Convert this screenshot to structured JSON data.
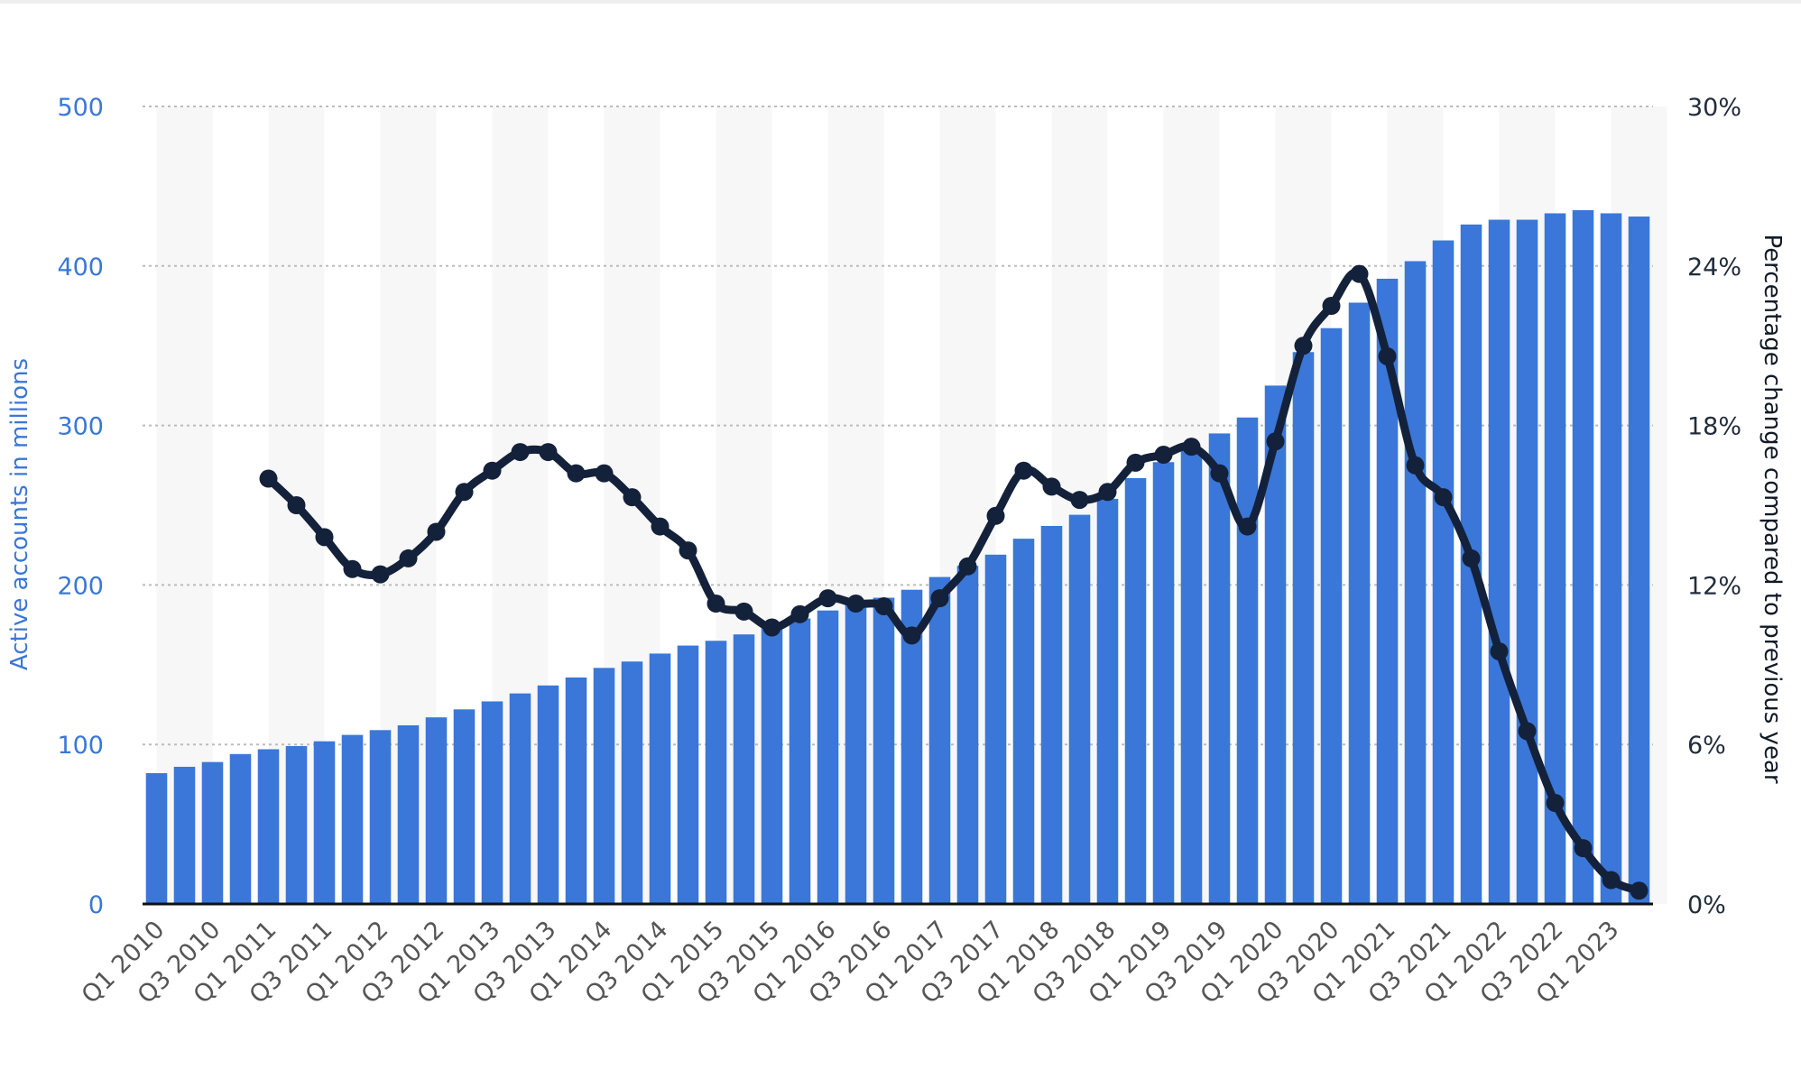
{
  "chart_data": {
    "type": "bar",
    "categories": [
      "Q1 2010",
      "Q2 2010",
      "Q3 2010",
      "Q4 2010",
      "Q1 2011",
      "Q2 2011",
      "Q3 2011",
      "Q4 2011",
      "Q1 2012",
      "Q2 2012",
      "Q3 2012",
      "Q4 2012",
      "Q1 2013",
      "Q2 2013",
      "Q3 2013",
      "Q4 2013",
      "Q1 2014",
      "Q2 2014",
      "Q3 2014",
      "Q4 2014",
      "Q1 2015",
      "Q2 2015",
      "Q3 2015",
      "Q4 2015",
      "Q1 2016",
      "Q2 2016",
      "Q3 2016",
      "Q4 2016",
      "Q1 2017",
      "Q2 2017",
      "Q3 2017",
      "Q4 2017",
      "Q1 2018",
      "Q2 2018",
      "Q3 2018",
      "Q4 2018",
      "Q1 2019",
      "Q2 2019",
      "Q3 2019",
      "Q4 2019",
      "Q1 2020",
      "Q2 2020",
      "Q3 2020",
      "Q4 2020",
      "Q1 2021",
      "Q2 2021",
      "Q3 2021",
      "Q4 2021",
      "Q1 2022",
      "Q2 2022",
      "Q3 2022",
      "Q4 2022",
      "Q1 2023",
      "Q2 2023"
    ],
    "x_tick_labels": [
      "Q1 2010",
      "Q3 2010",
      "Q1 2011",
      "Q3 2011",
      "Q1 2012",
      "Q3 2012",
      "Q1 2013",
      "Q3 2013",
      "Q1 2014",
      "Q3 2014",
      "Q1 2015",
      "Q3 2015",
      "Q1 2016",
      "Q3 2016",
      "Q1 2017",
      "Q3 2017",
      "Q1 2018",
      "Q3 2018",
      "Q1 2019",
      "Q3 2019",
      "Q1 2020",
      "Q3 2020",
      "Q1 2021",
      "Q3 2021",
      "Q1 2022",
      "Q3 2022",
      "Q1 2023"
    ],
    "series": [
      {
        "name": "Active accounts in millions",
        "type": "bar",
        "axis": "left",
        "color": "#3a77d8",
        "values": [
          82,
          86,
          89,
          94,
          97,
          99,
          102,
          106,
          109,
          112,
          117,
          122,
          127,
          132,
          137,
          142,
          148,
          152,
          157,
          162,
          165,
          169,
          173,
          179,
          184,
          188,
          192,
          197,
          205,
          212,
          219,
          229,
          237,
          244,
          254,
          267,
          277,
          286,
          295,
          305,
          325,
          346,
          361,
          377,
          392,
          403,
          416,
          426,
          429,
          429,
          433,
          435,
          433,
          431
        ]
      },
      {
        "name": "Percentage change compared to previous year",
        "type": "line",
        "axis": "right",
        "color": "#14213a",
        "values": [
          null,
          null,
          null,
          null,
          16.0,
          15.0,
          13.8,
          12.6,
          12.4,
          13.0,
          14.0,
          15.5,
          16.3,
          17.0,
          17.0,
          16.2,
          16.2,
          15.3,
          14.2,
          13.3,
          11.3,
          11.0,
          10.4,
          10.9,
          11.5,
          11.3,
          11.2,
          10.1,
          11.5,
          12.7,
          14.6,
          16.3,
          15.7,
          15.2,
          15.5,
          16.6,
          16.9,
          17.2,
          16.2,
          14.2,
          17.4,
          21.0,
          22.5,
          23.7,
          20.6,
          16.5,
          15.3,
          13.0,
          9.5,
          6.5,
          3.8,
          2.1,
          0.9,
          0.5
        ]
      }
    ],
    "y_left": {
      "label": "Active accounts in millions",
      "ylim": [
        0,
        500
      ],
      "ticks": [
        "0",
        "100",
        "200",
        "300",
        "400",
        "500"
      ]
    },
    "y_right": {
      "label": "Percentage change compared to previous year",
      "ylim": [
        0,
        30
      ],
      "ticks": [
        "0%",
        "6%",
        "12%",
        "18%",
        "24%",
        "30%"
      ]
    },
    "grid": true,
    "legend": "none"
  }
}
